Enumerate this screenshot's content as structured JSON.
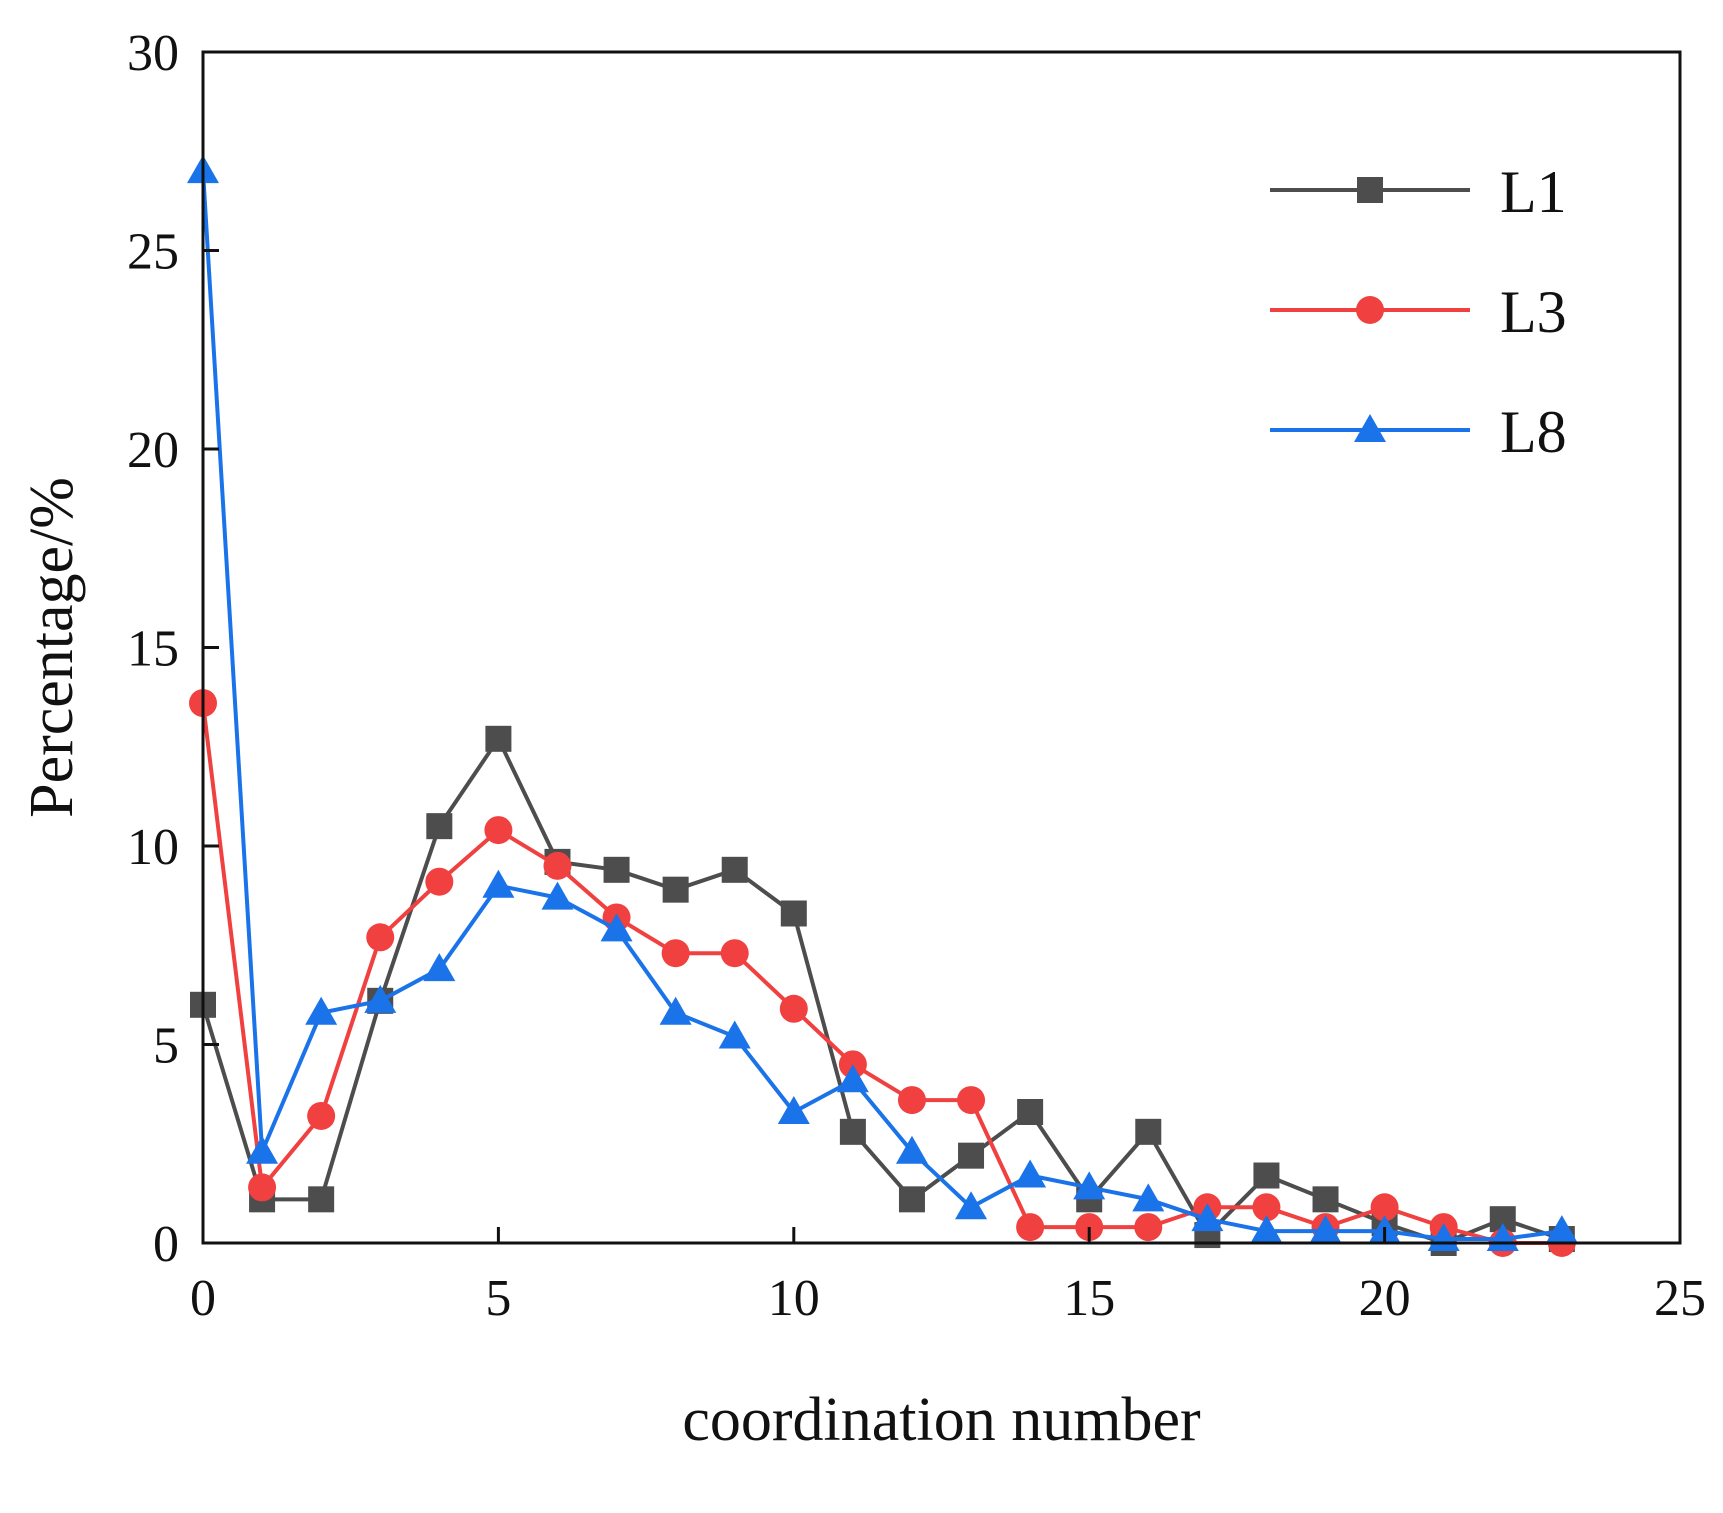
{
  "chart_data": {
    "type": "line",
    "title": "",
    "xlabel": "coordination number",
    "ylabel": "Percentage/%",
    "xlim": [
      0,
      25
    ],
    "ylim": [
      0,
      30
    ],
    "xticks": [
      0,
      5,
      10,
      15,
      20,
      25
    ],
    "yticks": [
      0,
      5,
      10,
      15,
      20,
      25,
      30
    ],
    "grid": false,
    "legend_position": "top-right",
    "x": [
      0,
      1,
      2,
      3,
      4,
      5,
      6,
      7,
      8,
      9,
      10,
      11,
      12,
      13,
      14,
      15,
      16,
      17,
      18,
      19,
      20,
      21,
      22,
      23
    ],
    "series": [
      {
        "name": "L1",
        "color": "#4d4d4d",
        "marker": "square",
        "values": [
          6.0,
          1.1,
          1.1,
          6.1,
          10.5,
          12.7,
          9.6,
          9.4,
          8.9,
          9.4,
          8.3,
          2.8,
          1.1,
          2.2,
          3.3,
          1.1,
          2.8,
          0.2,
          1.7,
          1.1,
          0.5,
          0.0,
          0.6,
          0.1
        ]
      },
      {
        "name": "L3",
        "color": "#f04040",
        "marker": "circle",
        "values": [
          13.6,
          1.4,
          3.2,
          7.7,
          9.1,
          10.4,
          9.5,
          8.2,
          7.3,
          7.3,
          5.9,
          4.5,
          3.6,
          3.6,
          0.4,
          0.4,
          0.4,
          0.9,
          0.9,
          0.4,
          0.9,
          0.4,
          0.0,
          0.0
        ]
      },
      {
        "name": "L8",
        "color": "#1a73e8",
        "marker": "triangle",
        "values": [
          27.0,
          2.3,
          5.8,
          6.1,
          6.9,
          9.0,
          8.7,
          7.9,
          5.8,
          5.2,
          3.3,
          4.1,
          2.3,
          0.9,
          1.7,
          1.4,
          1.1,
          0.6,
          0.3,
          0.3,
          0.3,
          0.1,
          0.1,
          0.3
        ]
      }
    ]
  }
}
